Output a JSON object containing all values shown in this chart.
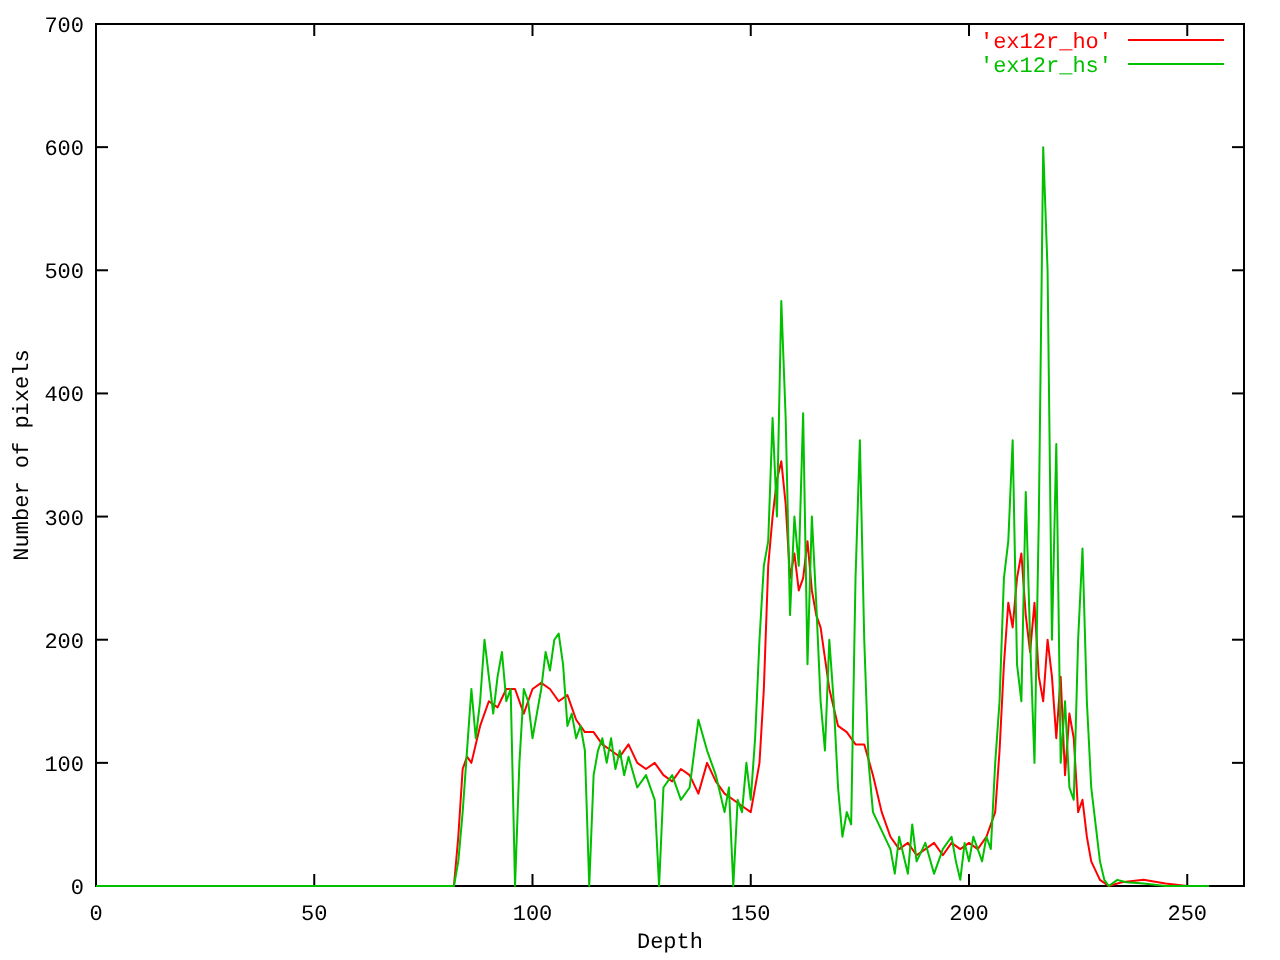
{
  "chart_data": {
    "type": "line",
    "xlabel": "Depth",
    "ylabel": "Number of pixels",
    "xlim": [
      0,
      263
    ],
    "ylim": [
      0,
      700
    ],
    "xticks": [
      0,
      50,
      100,
      150,
      200,
      250
    ],
    "yticks": [
      0,
      100,
      200,
      300,
      400,
      500,
      600,
      700
    ],
    "grid": false,
    "legend": "top right",
    "marker": "none",
    "line_style": "solid",
    "series": [
      {
        "name": "'ex12r_ho'",
        "color": "#ff0000",
        "x": [
          0,
          82,
          83,
          84,
          85,
          86,
          88,
          90,
          92,
          94,
          96,
          98,
          100,
          102,
          104,
          106,
          108,
          110,
          112,
          114,
          116,
          118,
          120,
          122,
          124,
          126,
          128,
          130,
          132,
          134,
          136,
          138,
          140,
          142,
          144,
          146,
          148,
          150,
          151,
          152,
          153,
          154,
          155,
          156,
          157,
          158,
          159,
          160,
          161,
          162,
          163,
          164,
          165,
          166,
          168,
          170,
          172,
          174,
          176,
          178,
          180,
          182,
          184,
          186,
          188,
          190,
          192,
          194,
          196,
          198,
          200,
          202,
          204,
          206,
          207,
          208,
          209,
          210,
          211,
          212,
          213,
          214,
          215,
          216,
          217,
          218,
          219,
          220,
          221,
          222,
          223,
          224,
          225,
          226,
          227,
          228,
          230,
          232,
          235,
          240,
          245,
          250,
          255
        ],
        "values": [
          0,
          0,
          40,
          95,
          105,
          100,
          130,
          150,
          145,
          160,
          160,
          140,
          160,
          165,
          160,
          150,
          155,
          135,
          125,
          125,
          115,
          110,
          105,
          115,
          100,
          95,
          100,
          90,
          85,
          95,
          90,
          75,
          100,
          85,
          75,
          70,
          65,
          60,
          80,
          100,
          160,
          260,
          300,
          330,
          345,
          310,
          250,
          270,
          240,
          250,
          280,
          240,
          220,
          210,
          160,
          130,
          125,
          115,
          115,
          90,
          60,
          40,
          30,
          35,
          25,
          30,
          35,
          25,
          35,
          30,
          35,
          30,
          40,
          60,
          110,
          180,
          230,
          210,
          250,
          270,
          220,
          190,
          230,
          170,
          150,
          200,
          170,
          120,
          170,
          90,
          140,
          120,
          60,
          70,
          40,
          20,
          5,
          0,
          3,
          5,
          2,
          0,
          0
        ]
      },
      {
        "name": "'ex12r_hs'",
        "color": "#00c000",
        "x": [
          0,
          82,
          83,
          84,
          85,
          86,
          87,
          88,
          89,
          90,
          91,
          92,
          93,
          94,
          95,
          96,
          97,
          98,
          99,
          100,
          101,
          102,
          103,
          104,
          105,
          106,
          107,
          108,
          109,
          110,
          111,
          112,
          113,
          114,
          115,
          116,
          117,
          118,
          119,
          120,
          121,
          122,
          124,
          126,
          128,
          129,
          130,
          132,
          134,
          136,
          138,
          140,
          142,
          144,
          145,
          146,
          147,
          148,
          149,
          150,
          151,
          152,
          153,
          154,
          155,
          156,
          157,
          158,
          159,
          160,
          161,
          162,
          163,
          164,
          165,
          166,
          167,
          168,
          169,
          170,
          171,
          172,
          173,
          174,
          175,
          176,
          177,
          178,
          180,
          182,
          183,
          184,
          186,
          187,
          188,
          190,
          192,
          194,
          196,
          197,
          198,
          199,
          200,
          201,
          203,
          204,
          205,
          206,
          207,
          208,
          209,
          210,
          211,
          212,
          213,
          214,
          215,
          216,
          217,
          218,
          219,
          220,
          221,
          222,
          223,
          224,
          225,
          226,
          227,
          228,
          229,
          230,
          231,
          232,
          234,
          236,
          240,
          245,
          255
        ],
        "values": [
          0,
          0,
          20,
          60,
          110,
          160,
          120,
          150,
          200,
          170,
          140,
          170,
          190,
          150,
          160,
          0,
          100,
          160,
          150,
          120,
          140,
          160,
          190,
          175,
          200,
          205,
          180,
          130,
          140,
          120,
          130,
          110,
          0,
          90,
          110,
          120,
          100,
          120,
          95,
          110,
          90,
          105,
          80,
          90,
          70,
          0,
          80,
          90,
          70,
          80,
          135,
          110,
          90,
          60,
          80,
          0,
          70,
          60,
          100,
          70,
          120,
          200,
          260,
          280,
          380,
          300,
          475,
          380,
          220,
          300,
          260,
          384,
          180,
          300,
          230,
          150,
          110,
          200,
          150,
          80,
          40,
          60,
          50,
          250,
          362,
          200,
          100,
          60,
          45,
          30,
          10,
          40,
          10,
          50,
          20,
          35,
          10,
          30,
          40,
          20,
          5,
          35,
          20,
          40,
          20,
          40,
          30,
          100,
          150,
          250,
          280,
          362,
          180,
          150,
          320,
          200,
          100,
          300,
          600,
          500,
          200,
          359,
          100,
          150,
          80,
          70,
          200,
          274,
          150,
          80,
          50,
          20,
          5,
          0,
          5,
          3,
          2,
          0,
          0
        ]
      }
    ]
  }
}
